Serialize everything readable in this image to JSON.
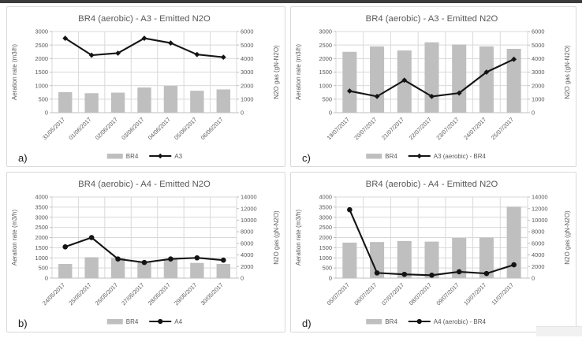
{
  "page": {
    "background": "#ffffff",
    "top_strip_color": "#3c3c3c"
  },
  "colors": {
    "bar": "#bfbfbf",
    "line": "#141414",
    "grid": "#d9d9d9",
    "axis_line": "#bfbfbf",
    "axis_text": "#595959",
    "title_text": "#595959",
    "panel_letter": "#1a1a1a",
    "panel_border": "#d9d9d9"
  },
  "chart_data": [
    {
      "id": "a",
      "panel_label": "a)",
      "type": "bar+line",
      "title": "BR4 (aerobic) - A3 - Emitted N2O",
      "ylabel_left": "Aeration rate (m3/h)",
      "ylabel_right": "N2O gas (gN-N2O)",
      "left_axis": {
        "min": 0,
        "max": 3000,
        "step": 500
      },
      "right_axis": {
        "min": 0,
        "max": 6000,
        "step": 1000
      },
      "grid": true,
      "legend_position": "bottom",
      "categories": [
        "31/05/2017",
        "01/06/2017",
        "02/06/2017",
        "03/06/2017",
        "04/06/2017",
        "05/06/2017",
        "06/06/2017"
      ],
      "series": [
        {
          "name": "BR4",
          "type": "bar",
          "axis": "left",
          "values": [
            760,
            720,
            740,
            930,
            990,
            810,
            860
          ]
        },
        {
          "name": "A3",
          "type": "line",
          "axis": "right",
          "marker": "diamond",
          "values": [
            5500,
            4250,
            4400,
            5500,
            5150,
            4300,
            4100
          ]
        }
      ]
    },
    {
      "id": "c",
      "panel_label": "c)",
      "type": "bar+line",
      "title": "BR4 (aerobic) - A3 - Emitted N2O",
      "ylabel_left": "Aeration rate (m3/h)",
      "ylabel_right": "N2O gas (gN-N2O)",
      "left_axis": {
        "min": 0,
        "max": 3000,
        "step": 500
      },
      "right_axis": {
        "min": 0,
        "max": 6000,
        "step": 1000
      },
      "grid": true,
      "legend_position": "bottom",
      "categories": [
        "19/07/2017",
        "20/07/2017",
        "21/07/2017",
        "22/07/2017",
        "23/07/2017",
        "24/07/2017",
        "25/07/2017"
      ],
      "series": [
        {
          "name": "BR4",
          "type": "bar",
          "axis": "left",
          "values": [
            2250,
            2450,
            2300,
            2600,
            2520,
            2450,
            2360
          ]
        },
        {
          "name": "A3 (aerobic) - BR4",
          "type": "line",
          "axis": "right",
          "marker": "diamond",
          "values": [
            1600,
            1200,
            2400,
            1200,
            1450,
            3000,
            3950
          ]
        }
      ]
    },
    {
      "id": "b",
      "panel_label": "b)",
      "type": "bar+line",
      "title": "BR4 (aerobic) - A4 - Emitted N2O",
      "ylabel_left": "Aeration rate (m3/h)",
      "ylabel_right": "N2O gas (gN-N2O)",
      "left_axis": {
        "min": 0,
        "max": 4000,
        "step": 500
      },
      "right_axis": {
        "min": 0,
        "max": 14000,
        "step": 2000
      },
      "grid": true,
      "legend_position": "bottom",
      "categories": [
        "24/05/2017",
        "25/05/2017",
        "26/05/2017",
        "27/05/2017",
        "28/05/2017",
        "29/05/2017",
        "30/05/2017"
      ],
      "series": [
        {
          "name": "BR4",
          "type": "bar",
          "axis": "left",
          "values": [
            700,
            1030,
            1000,
            790,
            930,
            750,
            700
          ]
        },
        {
          "name": "A4",
          "type": "line",
          "axis": "right",
          "marker": "circle",
          "values": [
            5400,
            7000,
            3300,
            2700,
            3300,
            3500,
            3100
          ]
        }
      ]
    },
    {
      "id": "d",
      "panel_label": "d)",
      "type": "bar+line",
      "title": "BR4 (aerobic) - A4 - Emitted N2O",
      "ylabel_left": "Aeration rate (m3/h)",
      "ylabel_right": "N2O gas (gN-N2O)",
      "left_axis": {
        "min": 0,
        "max": 4000,
        "step": 500
      },
      "right_axis": {
        "min": 0,
        "max": 14000,
        "step": 2000
      },
      "grid": true,
      "legend_position": "bottom",
      "categories": [
        "05/07/2017",
        "06/07/2017",
        "07/07/2017",
        "08/07/2017",
        "09/07/2017",
        "10/07/2017",
        "11/07/2017"
      ],
      "series": [
        {
          "name": "BR4",
          "type": "bar",
          "axis": "left",
          "values": [
            1750,
            1780,
            1830,
            1800,
            1980,
            2000,
            3520
          ]
        },
        {
          "name": "A4 (aerobic) - BR4",
          "type": "line",
          "axis": "right",
          "marker": "circle",
          "values": [
            11800,
            900,
            650,
            500,
            1100,
            800,
            2300
          ]
        }
      ]
    }
  ]
}
